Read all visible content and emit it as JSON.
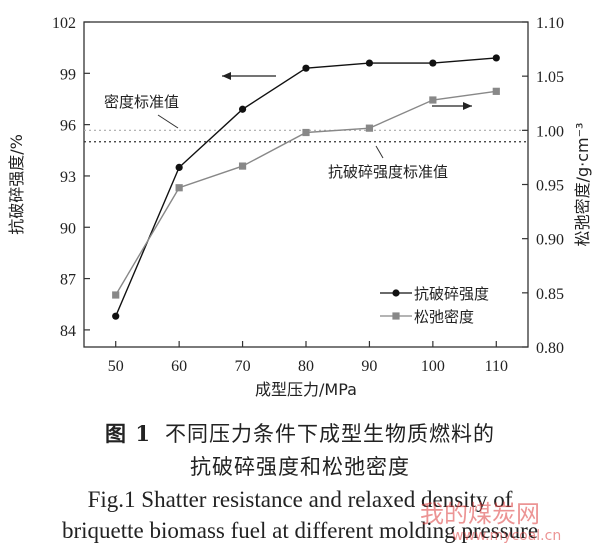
{
  "chart_data": {
    "type": "line",
    "xlabel": "成型压力/MPa",
    "ylabel_left": "抗破碎强度/%",
    "ylabel_right": "松弛密度/g·cm⁻³",
    "x": [
      50,
      60,
      70,
      80,
      90,
      100,
      110
    ],
    "x_ticks": [
      "50",
      "60",
      "70",
      "80",
      "90",
      "100",
      "110"
    ],
    "ylim_left": [
      83,
      102
    ],
    "ylim_right": [
      0.8,
      1.1
    ],
    "yticks_left": [
      "84",
      "87",
      "90",
      "93",
      "96",
      "99",
      "102"
    ],
    "yticks_right": [
      "0.80",
      "0.85",
      "0.90",
      "0.95",
      "1.00",
      "1.05",
      "1.10"
    ],
    "series": [
      {
        "name": "抗破碎强度",
        "axis": "left",
        "marker": "circle",
        "color": "#111111",
        "values": [
          84.8,
          93.5,
          96.9,
          99.3,
          99.6,
          99.6,
          99.9
        ]
      },
      {
        "name": "松弛密度",
        "axis": "right",
        "marker": "square",
        "color": "#888888",
        "values": [
          0.848,
          0.947,
          0.967,
          0.998,
          1.002,
          1.028,
          1.036
        ]
      }
    ],
    "reference_lines": [
      {
        "label": "密度标准值",
        "axis": "right",
        "value": 1.0,
        "style": "dotted",
        "color": "#aaaaaa"
      },
      {
        "label": "抗破碎强度标准值",
        "axis": "left",
        "value": 95.0,
        "style": "dotted",
        "color": "#333333"
      }
    ],
    "legend_position": "bottom-right"
  },
  "caption": {
    "zh_fig": "图 1",
    "zh_line1": "不同压力条件下成型生物质燃料的",
    "zh_line2": "抗破碎强度和松弛密度",
    "en_line1": "Fig.1 Shatter resistance and relaxed density of",
    "en_line2": "briquette biomass fuel at different molding pressure"
  },
  "watermark": {
    "text": "我的煤炭网",
    "url": "www.mycoal.cn"
  }
}
